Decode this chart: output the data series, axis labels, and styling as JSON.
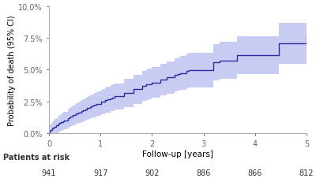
{
  "xlabel": "Follow-up [years]",
  "ylabel": "Probability of death (95% CI)",
  "ylim": [
    0.0,
    0.1
  ],
  "xlim": [
    0,
    5
  ],
  "yticks": [
    0.0,
    0.025,
    0.05,
    0.075,
    0.1
  ],
  "ytick_labels": [
    "0.0%",
    "2.5%",
    "5.0%",
    "7.5%",
    "10.0%"
  ],
  "xticks": [
    0,
    1,
    2,
    3,
    4,
    5
  ],
  "line_color": "#2a2e9c",
  "ci_color": "#9da3e8",
  "ci_alpha": 0.55,
  "patients_at_risk_label": "Patients at risk",
  "patients_at_risk_x": [
    0,
    1,
    2,
    3,
    4,
    5
  ],
  "patients_at_risk_n": [
    941,
    917,
    902,
    886,
    866,
    812
  ],
  "background_color": "#f5f5f0",
  "spine_color": "#aaaaaa",
  "tick_color": "#666666"
}
